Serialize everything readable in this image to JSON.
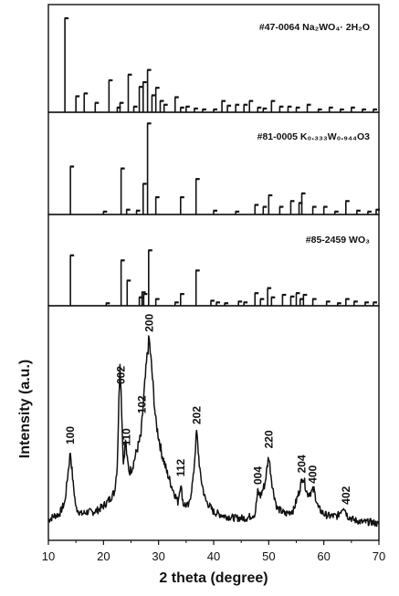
{
  "chart_data": [
    {
      "type": "bar",
      "panel": "reference",
      "label": "#47-0064 Na₂WO₄· 2H₂O",
      "x": [
        13.0,
        15.0,
        16.5,
        18.5,
        21.0,
        22.5,
        23.0,
        24.5,
        25.5,
        26.5,
        27.2,
        28.0,
        28.8,
        29.5,
        30.3,
        31.0,
        33.0,
        34.0,
        35.0,
        36.5,
        38.0,
        40.0,
        41.5,
        42.5,
        44.0,
        45.5,
        46.5,
        48.0,
        49.0,
        50.5,
        52.0,
        53.5,
        55.0,
        57.0,
        59.0,
        61.0,
        63.0,
        65.0,
        67.0,
        69.0
      ],
      "y": [
        100,
        17,
        20,
        10,
        34,
        5,
        10,
        40,
        6,
        27,
        32,
        45,
        18,
        26,
        12,
        8,
        16,
        5,
        6,
        4,
        3,
        3,
        12,
        7,
        8,
        8,
        12,
        5,
        4,
        12,
        6,
        6,
        5,
        8,
        3,
        5,
        3,
        5,
        3,
        3
      ]
    },
    {
      "type": "bar",
      "panel": "reference",
      "label": "#81-0005 K₀.₃₃₃W₀.₉₄₄O3",
      "x": [
        14.0,
        20.0,
        23.2,
        24.2,
        26.0,
        27.2,
        28.0,
        29.5,
        34.0,
        36.8,
        40.0,
        44.0,
        47.5,
        49.0,
        50.0,
        52.0,
        54.0,
        55.5,
        56.0,
        58.0,
        60.0,
        62.0,
        64.0,
        66.0,
        68.0,
        69.5
      ],
      "y": [
        50,
        3,
        48,
        5,
        4,
        32,
        95,
        18,
        18,
        37,
        4,
        3,
        10,
        8,
        20,
        8,
        14,
        12,
        22,
        8,
        8,
        3,
        14,
        4,
        3,
        5
      ]
    },
    {
      "type": "bar",
      "panel": "reference",
      "label": "#85-2459 WO₃",
      "x": [
        14.0,
        20.5,
        23.2,
        24.3,
        26.5,
        27.0,
        27.3,
        28.2,
        29.5,
        33.0,
        34.0,
        36.8,
        39.5,
        40.5,
        42.0,
        44.5,
        45.5,
        47.5,
        48.5,
        49.8,
        50.5,
        52.5,
        54.0,
        55.0,
        55.7,
        56.3,
        58.0,
        60.5,
        62.5,
        64.0,
        65.5,
        67.5,
        69.0
      ],
      "y": [
        60,
        3,
        54,
        30,
        10,
        16,
        14,
        66,
        8,
        4,
        14,
        42,
        6,
        4,
        3,
        5,
        4,
        15,
        8,
        21,
        10,
        13,
        11,
        15,
        8,
        13,
        8,
        5,
        3,
        8,
        5,
        4,
        4
      ]
    },
    {
      "type": "line",
      "panel": "measured",
      "title": "",
      "xlabel": "2 theta (degree)",
      "ylabel": "Intensity (a.u.)",
      "xlim": [
        10,
        70
      ],
      "xticks": [
        10,
        20,
        30,
        40,
        50,
        60,
        70
      ],
      "xtick_labels": [
        "10",
        "20",
        "30",
        "40",
        "50",
        "60",
        "70"
      ],
      "series": [
        {
          "x": [
            10,
            11,
            12,
            13,
            13.5,
            14,
            14.5,
            15,
            16,
            17,
            18,
            19,
            20,
            21,
            22,
            22.5,
            23,
            23.3,
            23.6,
            24,
            24.3,
            24.7,
            25.2,
            26,
            26.8,
            27.4,
            28.0,
            28.3,
            28.8,
            29.5,
            30.5,
            31.5,
            32.5,
            33.5,
            34.0,
            34.5,
            35.5,
            36.3,
            36.9,
            37.6,
            38.5,
            40,
            42,
            44,
            46,
            47.5,
            48.0,
            48.5,
            49.3,
            50.0,
            50.7,
            51.5,
            53,
            54.5,
            55.5,
            56.2,
            57,
            57.7,
            58.2,
            59,
            60,
            61,
            62.5,
            63.6,
            64.3,
            65.5,
            67,
            68.5,
            70
          ],
          "y": [
            6,
            8,
            9,
            15,
            28,
            40,
            24,
            12,
            9,
            10,
            10,
            11,
            13,
            16,
            20,
            33,
            86,
            62,
            34,
            46,
            36,
            30,
            32,
            40,
            48,
            70,
            90,
            96,
            80,
            55,
            40,
            30,
            22,
            15,
            24,
            14,
            13,
            27,
            50,
            28,
            16,
            10,
            8,
            7,
            7,
            9,
            20,
            18,
            24,
            38,
            22,
            12,
            9,
            11,
            20,
            28,
            19,
            20,
            21,
            12,
            9,
            8,
            8,
            13,
            8,
            6,
            5,
            5,
            4
          ]
        }
      ],
      "peak_labels": [
        {
          "text": "100",
          "x": 14.0
        },
        {
          "text": "002",
          "x": 23.2
        },
        {
          "text": "110",
          "x": 24.2
        },
        {
          "text": "102",
          "x": 27.0
        },
        {
          "text": "200",
          "x": 28.3
        },
        {
          "text": "112",
          "x": 34.0
        },
        {
          "text": "202",
          "x": 36.9
        },
        {
          "text": "004",
          "x": 48.0
        },
        {
          "text": "220",
          "x": 50.0
        },
        {
          "text": "204",
          "x": 56.0
        },
        {
          "text": "400",
          "x": 58.0
        },
        {
          "text": "402",
          "x": 64.0
        }
      ]
    }
  ]
}
